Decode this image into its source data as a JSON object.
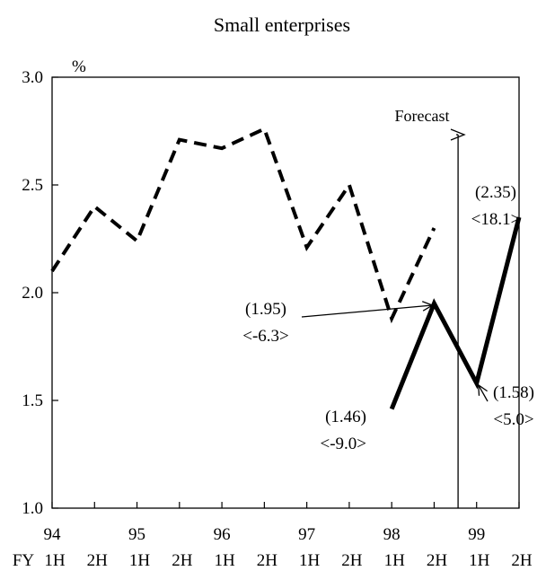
{
  "chart_data": {
    "type": "line",
    "title": "Small enterprises",
    "ylabel": "%",
    "ylim": [
      1.0,
      3.0
    ],
    "y_ticks": [
      "1.0",
      "1.5",
      "2.0",
      "2.5",
      "3.0"
    ],
    "x_year_labels": [
      "94",
      "95",
      "96",
      "97",
      "98",
      "99"
    ],
    "x_prefix": "FY",
    "x_half_labels": [
      "1H",
      "2H",
      "1H",
      "2H",
      "1H",
      "2H",
      "1H",
      "2H",
      "1H",
      "2H",
      "1H",
      "2H"
    ],
    "grid": false,
    "series": [
      {
        "style": "dashed",
        "values": [
          2.1,
          2.4,
          2.24,
          2.71,
          2.67,
          2.76,
          2.21,
          2.5,
          1.88,
          2.3,
          null,
          null
        ]
      },
      {
        "style": "solid",
        "values": [
          null,
          null,
          null,
          null,
          null,
          null,
          null,
          null,
          1.46,
          1.95,
          1.58,
          2.35
        ]
      }
    ],
    "forecast_label": "Forecast",
    "annotations": [
      {
        "index": 8,
        "value": 1.46,
        "line1": "(1.46)",
        "line2": "<-9.0>"
      },
      {
        "index": 9,
        "value": 1.95,
        "line1": "(1.95)",
        "line2": "<-6.3>"
      },
      {
        "index": 10,
        "value": 1.58,
        "line1": "(1.58)",
        "line2": "<5.0>"
      },
      {
        "index": 11,
        "value": 2.35,
        "line1": "(2.35)",
        "line2": "<18.1>"
      }
    ]
  }
}
